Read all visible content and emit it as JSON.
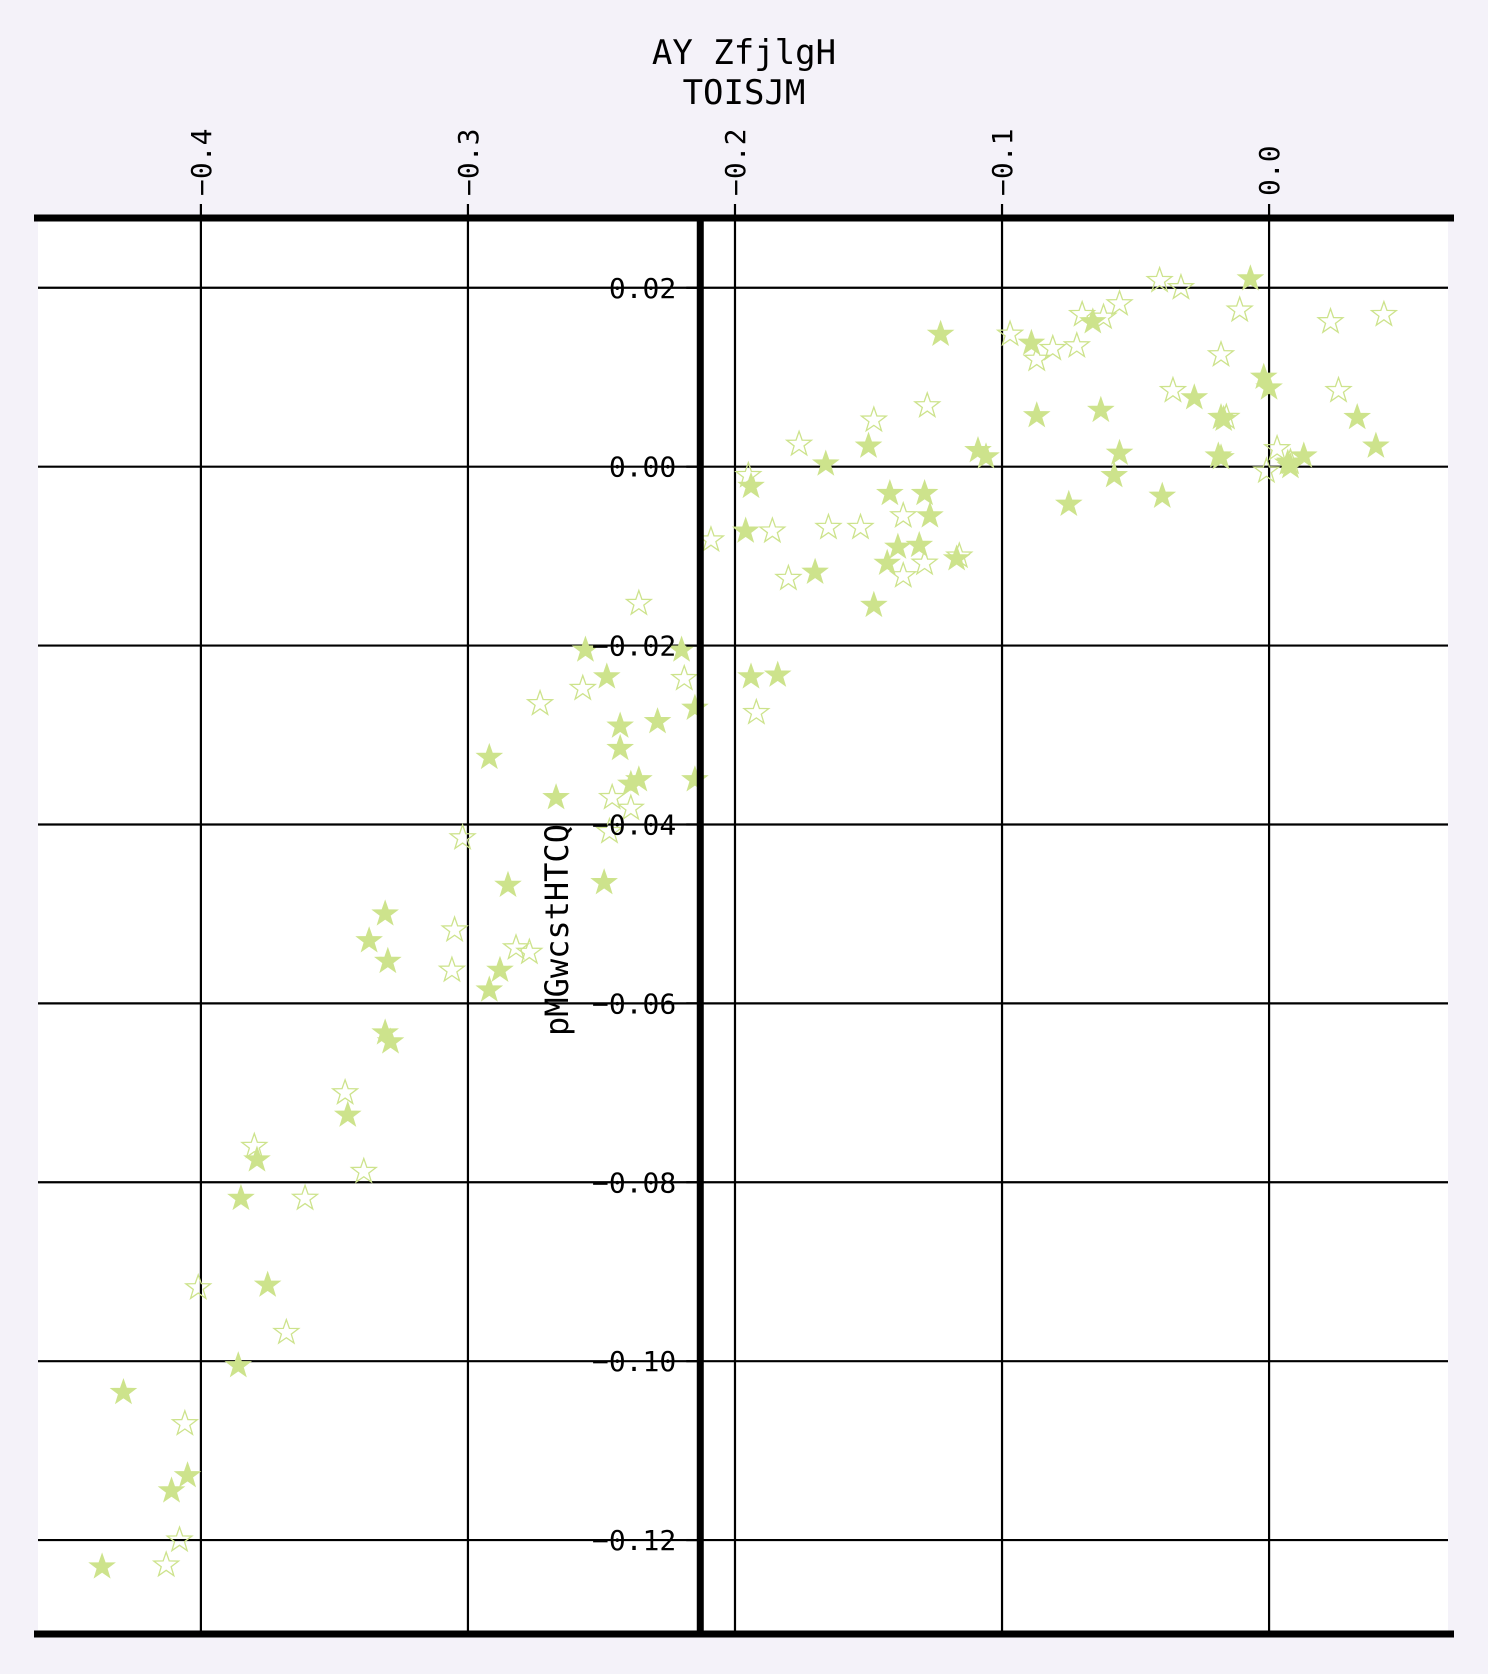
{
  "chart_data": {
    "type": "scatter",
    "title": [
      "AY ZfjlgH",
      "TOISJM"
    ],
    "xlabel": "",
    "ylabel": "pMGwcstHTCQ",
    "x_ticks": [
      -0.4,
      -0.3,
      -0.2,
      -0.1,
      0.0
    ],
    "x_tick_labels": [
      "−0.4",
      "−0.3",
      "−0.2",
      "−0.1",
      "0.0"
    ],
    "y_ticks": [
      0.02,
      0.0,
      -0.02,
      -0.04,
      -0.06,
      -0.08,
      -0.1,
      -0.12
    ],
    "y_tick_labels": [
      "0.02",
      "0.00",
      "−0.02",
      "−0.04",
      "−0.06",
      "−0.08",
      "−0.10",
      "−0.12"
    ],
    "xlim": [
      -0.461,
      0.067
    ],
    "ylim": [
      -0.1305,
      0.0278
    ],
    "x_axis_position": "top",
    "y_spine_at_x": -0.213,
    "grid": true,
    "marker": "star",
    "colors": {
      "marker": "#cde38c",
      "background": "#f4f2f9",
      "plot_bg": "#ffffff",
      "axis": "#000000"
    },
    "series": [
      {
        "style": "filled",
        "points": [
          [
            -0.123,
            0.0148
          ],
          [
            -0.007,
            0.021
          ],
          [
            -0.089,
            0.0138
          ],
          [
            -0.066,
            0.0162
          ],
          [
            -0.087,
            0.0057
          ],
          [
            -0.063,
            0.0063
          ],
          [
            -0.028,
            0.0077
          ],
          [
            -0.018,
            0.0055
          ],
          [
            -0.017,
            0.0053
          ],
          [
            -0.002,
            0.01
          ],
          [
            0.0,
            0.0088
          ],
          [
            0.033,
            0.0055
          ],
          [
            0.04,
            0.0023
          ],
          [
            -0.166,
            0.0003
          ],
          [
            -0.15,
            0.0023
          ],
          [
            -0.109,
            0.0018
          ],
          [
            -0.106,
            0.0011
          ],
          [
            -0.056,
            0.0015
          ],
          [
            -0.019,
            0.0012
          ],
          [
            -0.018,
            0.001
          ],
          [
            0.007,
            0.0004
          ],
          [
            0.008,
            0.0
          ],
          [
            0.013,
            0.0012
          ],
          [
            -0.058,
            -0.001
          ],
          [
            -0.075,
            -0.0042
          ],
          [
            -0.04,
            -0.0033
          ],
          [
            -0.194,
            -0.0022
          ],
          [
            -0.196,
            -0.0072
          ],
          [
            -0.142,
            -0.003
          ],
          [
            -0.129,
            -0.003
          ],
          [
            -0.127,
            -0.0055
          ],
          [
            -0.139,
            -0.009
          ],
          [
            -0.131,
            -0.0088
          ],
          [
            -0.143,
            -0.0108
          ],
          [
            -0.117,
            -0.0103
          ],
          [
            -0.17,
            -0.0118
          ],
          [
            -0.148,
            -0.0155
          ],
          [
            -0.256,
            -0.0205
          ],
          [
            -0.22,
            -0.0205
          ],
          [
            -0.248,
            -0.0235
          ],
          [
            -0.194,
            -0.0235
          ],
          [
            -0.184,
            -0.0233
          ],
          [
            -0.215,
            -0.027
          ],
          [
            -0.229,
            -0.0285
          ],
          [
            -0.243,
            -0.029
          ],
          [
            -0.243,
            -0.0315
          ],
          [
            -0.236,
            -0.035
          ],
          [
            -0.239,
            -0.0355
          ],
          [
            -0.215,
            -0.035
          ],
          [
            -0.292,
            -0.0325
          ],
          [
            -0.267,
            -0.037
          ],
          [
            -0.249,
            -0.0465
          ],
          [
            -0.285,
            -0.0468
          ],
          [
            -0.331,
            -0.05
          ],
          [
            -0.337,
            -0.053
          ],
          [
            -0.33,
            -0.0553
          ],
          [
            -0.288,
            -0.0563
          ],
          [
            -0.292,
            -0.0585
          ],
          [
            -0.331,
            -0.0633
          ],
          [
            -0.329,
            -0.0643
          ],
          [
            -0.345,
            -0.0725
          ],
          [
            -0.379,
            -0.0775
          ],
          [
            -0.385,
            -0.0818
          ],
          [
            -0.375,
            -0.0915
          ],
          [
            -0.386,
            -0.1005
          ],
          [
            -0.429,
            -0.1035
          ],
          [
            -0.405,
            -0.1128
          ],
          [
            -0.411,
            -0.1145
          ],
          [
            -0.437,
            -0.123
          ]
        ]
      },
      {
        "style": "outline",
        "points": [
          [
            -0.041,
            0.0208
          ],
          [
            -0.033,
            0.02
          ],
          [
            -0.056,
            0.0182
          ],
          [
            -0.07,
            0.017
          ],
          [
            -0.062,
            0.0167
          ],
          [
            -0.011,
            0.0175
          ],
          [
            0.023,
            0.0162
          ],
          [
            0.043,
            0.017
          ],
          [
            -0.097,
            0.0148
          ],
          [
            -0.072,
            0.0135
          ],
          [
            -0.081,
            0.0132
          ],
          [
            -0.087,
            0.012
          ],
          [
            -0.018,
            0.0125
          ],
          [
            -0.036,
            0.0085
          ],
          [
            0.026,
            0.0085
          ],
          [
            -0.016,
            0.0055
          ],
          [
            -0.128,
            0.0068
          ],
          [
            -0.148,
            0.0052
          ],
          [
            -0.176,
            0.0025
          ],
          [
            0.003,
            0.002
          ],
          [
            0.008,
            0.0005
          ],
          [
            -0.001,
            -0.0005
          ],
          [
            -0.195,
            -0.001
          ],
          [
            -0.153,
            -0.0068
          ],
          [
            -0.165,
            -0.0068
          ],
          [
            -0.186,
            -0.0072
          ],
          [
            -0.209,
            -0.0082
          ],
          [
            -0.137,
            -0.0055
          ],
          [
            -0.129,
            -0.0108
          ],
          [
            -0.137,
            -0.0122
          ],
          [
            -0.116,
            -0.01
          ],
          [
            -0.18,
            -0.0125
          ],
          [
            -0.236,
            -0.0153
          ],
          [
            -0.257,
            -0.0248
          ],
          [
            -0.273,
            -0.0265
          ],
          [
            -0.219,
            -0.0237
          ],
          [
            -0.192,
            -0.0275
          ],
          [
            -0.246,
            -0.037
          ],
          [
            -0.239,
            -0.0382
          ],
          [
            -0.247,
            -0.0408
          ],
          [
            -0.302,
            -0.0415
          ],
          [
            -0.305,
            -0.0518
          ],
          [
            -0.282,
            -0.0538
          ],
          [
            -0.277,
            -0.0543
          ],
          [
            -0.306,
            -0.0563
          ],
          [
            -0.346,
            -0.07
          ],
          [
            -0.38,
            -0.076
          ],
          [
            -0.339,
            -0.0788
          ],
          [
            -0.361,
            -0.0818
          ],
          [
            -0.401,
            -0.0918
          ],
          [
            -0.368,
            -0.0968
          ],
          [
            -0.406,
            -0.107
          ],
          [
            -0.408,
            -0.12
          ],
          [
            -0.413,
            -0.1228
          ]
        ]
      }
    ]
  }
}
